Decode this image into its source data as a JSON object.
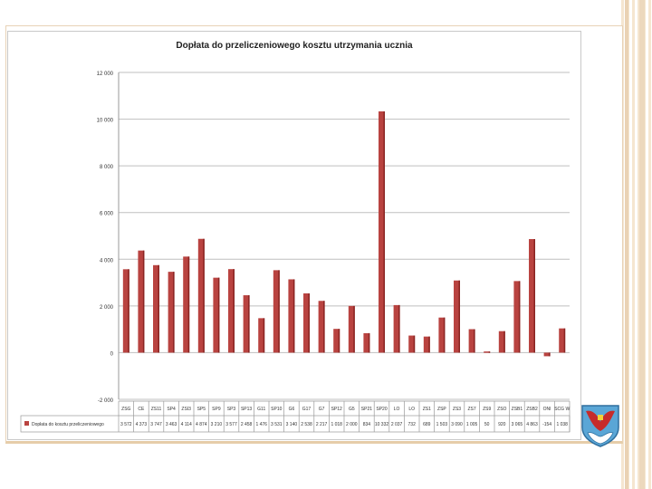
{
  "colors": {
    "bar": "#b94340",
    "bar_dark": "#8a2523",
    "grid": "#bfbfbf",
    "frame": "#e8d2b6"
  },
  "logo": {
    "name": "coat-of-arms-crest"
  },
  "chart_data": {
    "type": "bar",
    "title": "Dopłata do przeliczeniowego kosztu utrzymania ucznia",
    "ylim": [
      -2000,
      12000
    ],
    "yticks": [
      -2000,
      0,
      2000,
      4000,
      6000,
      8000,
      10000,
      12000
    ],
    "ytick_labels": [
      "-2 000",
      "0",
      "2 000",
      "4 000",
      "6 000",
      "8 000",
      "10 000",
      "12 000"
    ],
    "grid": true,
    "legend": "bottom-left (data table)",
    "categories": [
      "ZSG",
      "CE",
      "ZS11",
      "SP4",
      "ZSI3",
      "SP5",
      "SP9",
      "SP3",
      "SP13",
      "G11",
      "SP10",
      "G6",
      "G17",
      "G7",
      "SP12",
      "G5",
      "SP21",
      "SP20",
      "LO",
      "LO",
      "ZS1",
      "ZSP",
      "ZS3",
      "ZS7",
      "ZS9",
      "ZSO",
      "ZSB1",
      "ZSB2",
      "ONI",
      "SCG W"
    ],
    "series": [
      {
        "name": "Dopłata do kosztu przeliczeniowego",
        "values": [
          3572,
          4373,
          3747,
          3463,
          4114,
          4874,
          3210,
          3577,
          2458,
          1476,
          3531,
          3140,
          2538,
          2217,
          1018,
          2000,
          834,
          10332,
          2037,
          732,
          689,
          1503,
          3090,
          1005,
          50,
          920,
          3065,
          4863,
          -154,
          1038
        ],
        "labels": [
          "3 572",
          "4 373",
          "3 747",
          "3 463",
          "4 114",
          "4 874",
          "3 210",
          "3 577",
          "2 458",
          "1 476",
          "3 531",
          "3 140",
          "2 538",
          "2 217",
          "1 018",
          "2 000",
          "834",
          "10 332",
          "2 037",
          "732",
          "689",
          "1 503",
          "3 090",
          "1 005",
          "50",
          "920",
          "3 065",
          "4 863",
          "-154",
          "1 038"
        ]
      }
    ]
  }
}
